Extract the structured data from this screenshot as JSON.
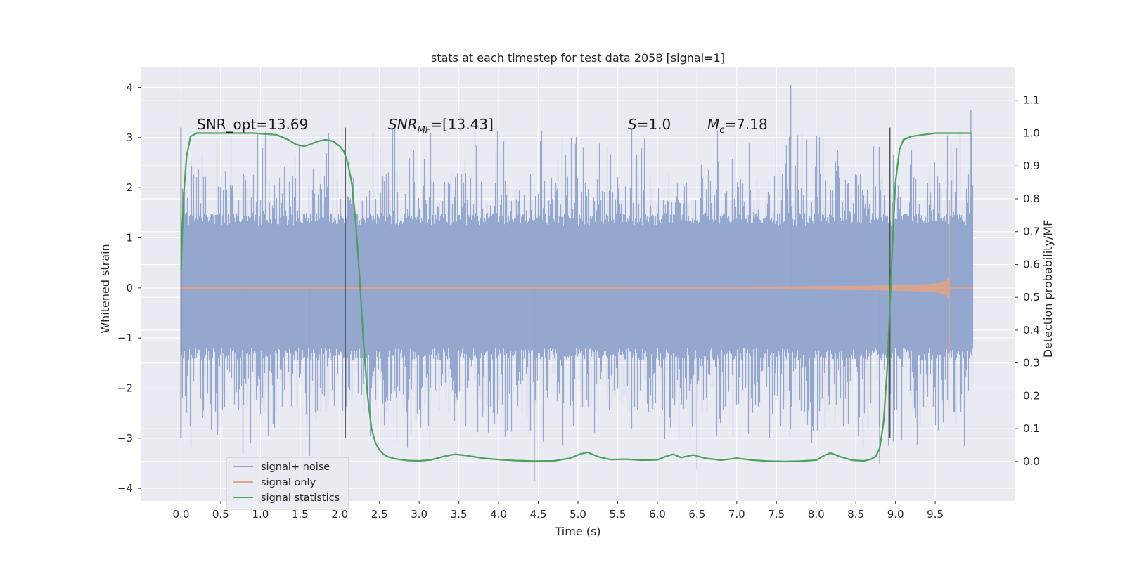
{
  "chart_data": {
    "type": "line",
    "title": "stats at each timestep for test data 2058 [signal=1]",
    "xlabel": "Time (s)",
    "ylabel": "Whitened strain",
    "y2label": "Detection probability/MF",
    "xlim": [
      -0.5,
      10.5
    ],
    "ylim": [
      -4.25,
      4.4
    ],
    "y2lim": [
      -0.12,
      1.2
    ],
    "xticks": [
      "0.0",
      "0.5",
      "1.0",
      "1.5",
      "2.0",
      "2.5",
      "3.0",
      "3.5",
      "4.0",
      "4.5",
      "5.0",
      "5.5",
      "6.0",
      "6.5",
      "7.0",
      "7.5",
      "8.0",
      "8.5",
      "9.0",
      "9.5"
    ],
    "yticks": [
      "4",
      "3",
      "2",
      "1",
      "0",
      "−1",
      "−2",
      "−3",
      "−4"
    ],
    "y2ticks": [
      "1.1",
      "1.0",
      "0.9",
      "0.8",
      "0.7",
      "0.6",
      "0.5",
      "0.4",
      "0.3",
      "0.2",
      "0.1",
      "0.0"
    ],
    "grid": true,
    "legend_position": "lower-left",
    "annotations": {
      "snr_opt": "SNR_opt=13.69",
      "snr_mf_base": "SNR",
      "snr_mf_sub": "MF",
      "snr_mf_value": "=[13.43]",
      "s_label": "S",
      "s_value": "=1.0",
      "mc_base": "M",
      "mc_sub": "c",
      "mc_value": "=7.18"
    },
    "vlines_x": [
      0.0,
      2.07,
      8.93
    ],
    "vline_range": [
      -3.0,
      3.2
    ],
    "series": [
      {
        "name": "signal+ noise",
        "color": "#8fa3cc",
        "x_range": [
          0.0,
          9.98
        ],
        "core_envelope": 1.35,
        "typical_spike_max": 2.3,
        "max_value": 4.05,
        "min_value": -3.85
      },
      {
        "name": "signal only",
        "color": "#e0a58a",
        "x_range": [
          0.0,
          9.68
        ],
        "amplitude_start": 0.01,
        "amplitude_end": 1.75,
        "peak_time": 9.68
      },
      {
        "name": "signal statistics",
        "color": "#4c9f5c",
        "axis": "right",
        "x": [
          0.0,
          0.03,
          0.07,
          0.12,
          0.2,
          0.35,
          0.6,
          0.9,
          1.2,
          1.35,
          1.45,
          1.55,
          1.62,
          1.72,
          1.82,
          1.92,
          2.0,
          2.05,
          2.1,
          2.15,
          2.2,
          2.25,
          2.3,
          2.35,
          2.4,
          2.45,
          2.5,
          2.55,
          2.6,
          2.7,
          2.85,
          3.0,
          3.15,
          3.3,
          3.45,
          3.6,
          3.8,
          4.0,
          4.2,
          4.45,
          4.7,
          4.9,
          5.02,
          5.12,
          5.25,
          5.4,
          5.6,
          5.8,
          6.0,
          6.1,
          6.2,
          6.3,
          6.45,
          6.6,
          6.8,
          7.0,
          7.2,
          7.4,
          7.6,
          7.8,
          8.0,
          8.1,
          8.18,
          8.3,
          8.45,
          8.6,
          8.68,
          8.75,
          8.8,
          8.85,
          8.9,
          8.95,
          9.0,
          9.05,
          9.1,
          9.2,
          9.35,
          9.5,
          9.7,
          9.95
        ],
        "values": [
          0.58,
          0.8,
          0.93,
          0.99,
          1.0,
          1.0,
          1.0,
          1.0,
          0.995,
          0.98,
          0.965,
          0.96,
          0.965,
          0.975,
          0.98,
          0.975,
          0.96,
          0.945,
          0.91,
          0.85,
          0.73,
          0.56,
          0.36,
          0.2,
          0.1,
          0.055,
          0.035,
          0.022,
          0.015,
          0.008,
          0.003,
          0.002,
          0.005,
          0.015,
          0.022,
          0.018,
          0.01,
          0.006,
          0.003,
          0.001,
          0.002,
          0.01,
          0.022,
          0.028,
          0.015,
          0.006,
          0.007,
          0.004,
          0.005,
          0.015,
          0.022,
          0.012,
          0.02,
          0.01,
          0.004,
          0.01,
          0.004,
          0.001,
          0.0,
          0.001,
          0.004,
          0.018,
          0.026,
          0.015,
          0.004,
          0.002,
          0.006,
          0.015,
          0.04,
          0.12,
          0.3,
          0.6,
          0.85,
          0.95,
          0.98,
          0.99,
          0.995,
          1.0,
          1.0,
          1.0
        ]
      }
    ]
  }
}
